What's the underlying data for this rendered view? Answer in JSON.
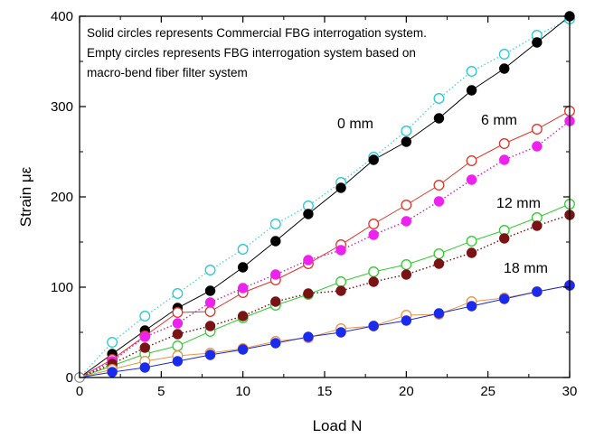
{
  "chart_data": {
    "type": "line",
    "xlabel": "Load N",
    "ylabel": "Strain με",
    "xlim": [
      0,
      30
    ],
    "ylim": [
      0,
      400
    ],
    "xticks": [
      0,
      5,
      10,
      15,
      20,
      25,
      30
    ],
    "yticks": [
      0,
      100,
      200,
      300,
      400
    ],
    "grid": false,
    "annotations": [
      "Solid circles represents Commercial FBG interrogation system.",
      "Empty circles represents FBG interrogation system based on",
      "macro-bend fiber filter system"
    ],
    "groups": [
      {
        "label": "0 mm",
        "color": "#000000",
        "x": [
          0,
          2,
          4,
          6,
          8,
          10,
          12,
          14,
          16,
          18,
          20,
          22,
          24,
          26,
          28,
          30
        ],
        "commercial": {
          "marker": "solid",
          "line_color": "#000000",
          "line_style": "solid",
          "marker_color": "#000000",
          "values": [
            0,
            26,
            52,
            77,
            96,
            122,
            151,
            181,
            210,
            241,
            261,
            287,
            318,
            342,
            371,
            400
          ]
        },
        "macro_bend": {
          "marker": "empty",
          "line_color": "#4dd6d6",
          "line_style": "dotted",
          "marker_color": "#27c9d6",
          "values": [
            0,
            39,
            68,
            93,
            119,
            142,
            170,
            190,
            216,
            244,
            273,
            309,
            339,
            358,
            379,
            397
          ]
        }
      },
      {
        "label": "6 mm",
        "color": "#e0342a",
        "x": [
          0,
          2,
          4,
          6,
          8,
          10,
          12,
          14,
          16,
          18,
          20,
          22,
          24,
          26,
          28,
          30
        ],
        "commercial": {
          "marker": "solid",
          "line_color": "#cc22cc",
          "line_style": "dotted",
          "marker_color": "#ee22ee",
          "values": [
            0,
            18,
            45,
            60,
            83,
            99,
            114,
            130,
            141,
            158,
            173,
            195,
            219,
            241,
            256,
            284
          ]
        },
        "macro_bend": {
          "marker": "empty",
          "line_color": "#e0342a",
          "line_style": "solid",
          "marker_color": "#e0342a",
          "values": [
            0,
            20,
            46,
            72,
            73,
            94,
            108,
            126,
            147,
            170,
            191,
            213,
            240,
            259,
            275,
            295
          ]
        }
      },
      {
        "label": "12 mm",
        "color": "#2ecc2e",
        "x": [
          0,
          2,
          4,
          6,
          8,
          10,
          12,
          14,
          16,
          18,
          20,
          22,
          24,
          26,
          28,
          30
        ],
        "commercial": {
          "marker": "solid",
          "line_color": "#7a1010",
          "line_style": "dotted",
          "marker_color": "#7a1414",
          "values": [
            0,
            15,
            33,
            48,
            57,
            68,
            84,
            93,
            96,
            106,
            114,
            126,
            138,
            154,
            168,
            180
          ]
        },
        "macro_bend": {
          "marker": "empty",
          "line_color": "#33cc33",
          "line_style": "solid",
          "marker_color": "#33cc33",
          "values": [
            0,
            13,
            26,
            35,
            51,
            66,
            80,
            92,
            106,
            117,
            125,
            137,
            151,
            163,
            177,
            192
          ]
        }
      },
      {
        "label": "18 mm",
        "color": "#1a2bd6",
        "x": [
          0,
          2,
          4,
          6,
          8,
          10,
          12,
          14,
          16,
          18,
          20,
          22,
          24,
          26,
          28,
          30
        ],
        "commercial": {
          "marker": "solid",
          "line_color": "#1a2bd6",
          "line_style": "solid",
          "marker_color": "#1a2bee",
          "values": [
            0,
            6,
            11,
            18,
            25,
            31,
            38,
            45,
            50,
            57,
            63,
            71,
            79,
            87,
            95,
            102
          ]
        },
        "macro_bend": {
          "marker": "empty",
          "line_color": "#e8944a",
          "line_style": "solid",
          "marker_color": "#e8944a",
          "values": [
            0,
            9,
            18,
            24,
            27,
            32,
            40,
            44,
            54,
            57,
            69,
            70,
            84,
            88,
            95,
            102
          ]
        }
      }
    ]
  }
}
